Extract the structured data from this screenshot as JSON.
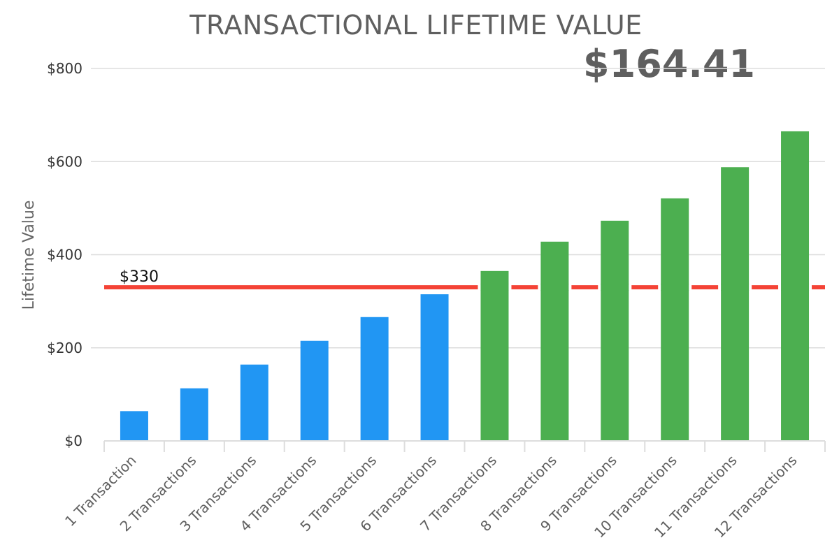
{
  "title": "TRANSACTIONAL LIFETIME VALUE",
  "headline_value": "$164.41",
  "colors": {
    "below": "#2196f3",
    "above": "#4caf50",
    "reference": "#f44336",
    "grid": "#dddddd"
  },
  "chart_data": {
    "type": "bar",
    "title": "TRANSACTIONAL LIFETIME VALUE",
    "ylabel": "Lifetime Value",
    "xlabel": "",
    "ylim": [
      0,
      800
    ],
    "yticks": [
      0,
      200,
      400,
      600,
      800
    ],
    "ytick_labels": [
      "$0",
      "$200",
      "$400",
      "$600",
      "$800"
    ],
    "categories": [
      "1 Transaction",
      "2 Transactions",
      "3 Transactions",
      "4 Transactions",
      "5 Transactions",
      "6 Transactions",
      "7 Transactions",
      "8 Transactions",
      "9 Transactions",
      "10 Transactions",
      "11 Transactions",
      "12 Transactions"
    ],
    "values": [
      64,
      113,
      164,
      215,
      266,
      315,
      365,
      428,
      473,
      521,
      588,
      665
    ],
    "bar_colors": [
      "below",
      "below",
      "below",
      "below",
      "below",
      "below",
      "above",
      "above",
      "above",
      "above",
      "above",
      "above"
    ],
    "reference_line": {
      "value": 330,
      "label": "$330"
    },
    "grid": true
  }
}
